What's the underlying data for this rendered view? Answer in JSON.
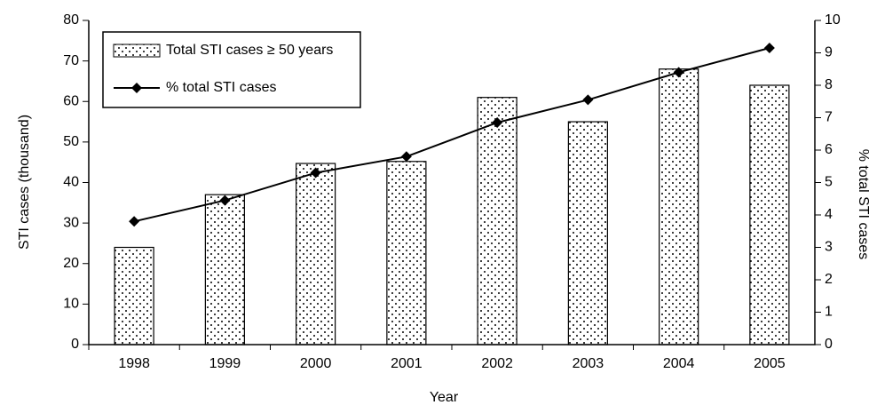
{
  "chart_data": {
    "type": "bar",
    "categories": [
      "1998",
      "1999",
      "2000",
      "2001",
      "2002",
      "2003",
      "2004",
      "2005"
    ],
    "series": [
      {
        "name": "Total STI cases ≥ 50 years",
        "type": "bar",
        "color": "#000000",
        "values": [
          24,
          37,
          44.7,
          45.2,
          61,
          55,
          68,
          64
        ]
      },
      {
        "name": "% total STI cases",
        "type": "line",
        "axis": "y2",
        "color": "#000000",
        "values": [
          3.8,
          4.45,
          5.3,
          5.8,
          6.85,
          7.55,
          8.4,
          9.15
        ]
      }
    ],
    "xlabel": "Year",
    "ylabel": "STI cases (thousand)",
    "y2label": "% total STI cases",
    "ylim": [
      0,
      80
    ],
    "yticks": [
      0,
      10,
      20,
      30,
      40,
      50,
      60,
      70,
      80
    ],
    "y2lim": [
      0,
      10
    ],
    "y2ticks": [
      0,
      1,
      2,
      3,
      4,
      5,
      6,
      7,
      8,
      9,
      10
    ],
    "legend": "upper left"
  }
}
